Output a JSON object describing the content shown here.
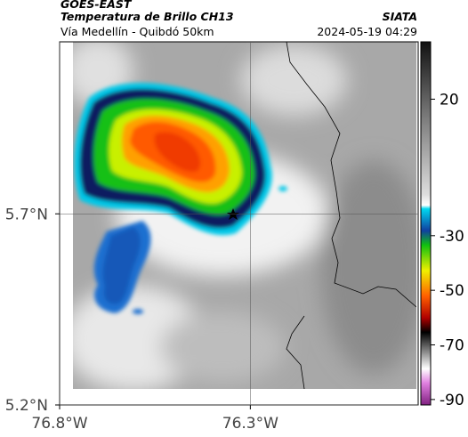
{
  "header": {
    "satellite": "GOES-EAST",
    "product": "Temperatura de Brillo CH13",
    "region": "Vía Medellín - Quibdó 50km",
    "source": "SIATA",
    "timestamp": "2024-05-19 04:29"
  },
  "map": {
    "xlim": [
      -76.8,
      -75.86
    ],
    "ylim": [
      5.2,
      6.15
    ],
    "xticks": [
      {
        "value": -76.8,
        "label": "76.8°W"
      },
      {
        "value": -76.3,
        "label": "76.3°W"
      }
    ],
    "yticks": [
      {
        "value": 5.7,
        "label": "5.7°N"
      },
      {
        "value": 5.2,
        "label": "5.2°N"
      }
    ]
  },
  "colorbar": {
    "lim": [
      -92,
      41
    ],
    "ticks": [
      20,
      -30,
      -50,
      -70,
      -90
    ]
  }
}
